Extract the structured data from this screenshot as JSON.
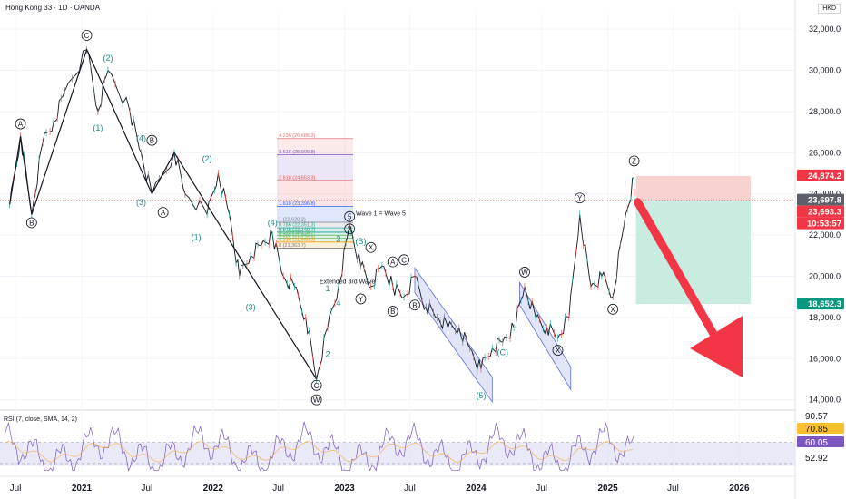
{
  "header": {
    "title": "Hong Kong 33 · 1D · OANDA",
    "currency": "HKD"
  },
  "rsi_panel": {
    "title": "RSI (7, close, SMA, 14, 2)"
  },
  "colors": {
    "up": "#26a69a",
    "down": "#ef5350",
    "price": "#131722",
    "wave_teal": "#1f8a8a",
    "wave_dark": "#131722",
    "channel_fill": "#aab4e8",
    "stop_zone": "#f7c9c9",
    "target_zone": "#bfe9dc",
    "arrow": "#f23645",
    "rsi_line": "#7e57c2",
    "rsi_band": "#e0e0f5"
  },
  "chart_data": [
    {
      "type": "line",
      "title": "Hong Kong 33 · 1D · OANDA",
      "series": [
        {
          "values": [
            {
              "x": "2020-06",
              "y": 23500
            },
            {
              "x": "2020-07",
              "y": 26800
            },
            {
              "x": "2020-08",
              "y": 23000
            },
            {
              "x": "2020-09",
              "y": 26500
            },
            {
              "x": "2020-10",
              "y": 27500
            },
            {
              "x": "2020-11",
              "y": 29000
            },
            {
              "x": "2021-01",
              "y": 31000
            },
            {
              "x": "2021-02",
              "y": 28000
            },
            {
              "x": "2021-03",
              "y": 30000
            },
            {
              "x": "2021-05",
              "y": 28000
            },
            {
              "x": "2021-06",
              "y": 26000
            },
            {
              "x": "2021-07",
              "y": 24000
            },
            {
              "x": "2021-09",
              "y": 26000
            },
            {
              "x": "2021-10",
              "y": 24000
            },
            {
              "x": "2021-12",
              "y": 23000
            },
            {
              "x": "2022-01",
              "y": 25000
            },
            {
              "x": "2022-02",
              "y": 23000
            },
            {
              "x": "2022-03",
              "y": 20000
            },
            {
              "x": "2022-04",
              "y": 21000
            },
            {
              "x": "2022-05",
              "y": 21500
            },
            {
              "x": "2022-06",
              "y": 22000
            },
            {
              "x": "2022-07",
              "y": 20000
            },
            {
              "x": "2022-08",
              "y": 19500
            },
            {
              "x": "2022-09",
              "y": 18000
            },
            {
              "x": "2022-10",
              "y": 15000
            },
            {
              "x": "2022-11",
              "y": 17500
            },
            {
              "x": "2022-12",
              "y": 19500
            },
            {
              "x": "2023-01",
              "y": 22500
            },
            {
              "x": "2023-02",
              "y": 20500
            },
            {
              "x": "2023-03",
              "y": 19500
            },
            {
              "x": "2023-04",
              "y": 20500
            },
            {
              "x": "2023-05",
              "y": 19500
            },
            {
              "x": "2023-06",
              "y": 19000
            },
            {
              "x": "2023-07",
              "y": 20000
            },
            {
              "x": "2023-08",
              "y": 18500
            },
            {
              "x": "2023-09",
              "y": 18000
            },
            {
              "x": "2023-10",
              "y": 17500
            },
            {
              "x": "2023-11",
              "y": 17500
            },
            {
              "x": "2023-12",
              "y": 16500
            },
            {
              "x": "2024-01",
              "y": 15500
            },
            {
              "x": "2024-02",
              "y": 16500
            },
            {
              "x": "2024-03",
              "y": 16800
            },
            {
              "x": "2024-04",
              "y": 17500
            },
            {
              "x": "2024-05",
              "y": 19500
            },
            {
              "x": "2024-06",
              "y": 18000
            },
            {
              "x": "2024-07",
              "y": 17500
            },
            {
              "x": "2024-08",
              "y": 17000
            },
            {
              "x": "2024-09",
              "y": 18000
            },
            {
              "x": "2024-10",
              "y": 23000
            },
            {
              "x": "2024-11",
              "y": 19500
            },
            {
              "x": "2024-12",
              "y": 20000
            },
            {
              "x": "2025-01",
              "y": 19000
            },
            {
              "x": "2025-02",
              "y": 22500
            },
            {
              "x": "2025-03",
              "y": 24800
            },
            {
              "x": "2025-03-15",
              "y": 23700
            }
          ]
        }
      ],
      "x_ticks": [
        "Jul",
        "2021",
        "Jul",
        "2022",
        "Jul",
        "2023",
        "Jul",
        "2024",
        "Jul",
        "2025",
        "Jul",
        "2026"
      ],
      "y_ticks": [
        "32,000.0",
        "30,000.0",
        "28,000.0",
        "26,000.0",
        "24,000.0",
        "22,000.0",
        "20,000.0",
        "18,000.0",
        "16,000.0",
        "14,000.0"
      ],
      "ylim": [
        13500,
        32800
      ],
      "price_labels": [
        {
          "value": 24874.2,
          "text": "24,874.2",
          "color": "#f23645"
        },
        {
          "value": 23697.8,
          "text": "23,697.8",
          "color": "#5d606b"
        },
        {
          "value": 23693.3,
          "text": "23,693.3",
          "color": "#f23645"
        },
        {
          "value": null,
          "text": "10:53:57",
          "color": "#f23645"
        },
        {
          "value": 18652.3,
          "text": "18,652.3",
          "color": "#089981"
        }
      ],
      "position_tool": {
        "entry": 23697.8,
        "stop": 24874.2,
        "target": 18652.3
      },
      "fib_levels": [
        {
          "text": "4.236 (26,686.3)",
          "value": 26686.3,
          "color": "#e57373"
        },
        {
          "text": "3.618 (25,909.8)",
          "value": 25909.8,
          "color": "#7e57c2"
        },
        {
          "text": "2.618 (24,653.3)",
          "value": 24653.3,
          "color": "#ef5350"
        },
        {
          "text": "1.618 (23,396.8)",
          "value": 23396.8,
          "color": "#2962ff"
        },
        {
          "text": "1 (22,620.2)",
          "value": 22620.2,
          "color": "#787b86"
        },
        {
          "text": "0.786 (22,351.3)",
          "value": 22351.3,
          "color": "#26a69a"
        },
        {
          "text": "0.618 (22,140.2)",
          "value": 22140.2,
          "color": "#089981"
        },
        {
          "text": "0.5 (21,991.9)",
          "value": 21991.9,
          "color": "#4caf50"
        },
        {
          "text": "0.382 (21,843.5)",
          "value": 21843.5,
          "color": "#66bb6a"
        },
        {
          "text": "0.236 (21,660.3)",
          "value": 21660.3,
          "color": "#ff9800"
        },
        {
          "text": "0 (21,363.7)",
          "value": 21363.7,
          "color": "#787b86"
        }
      ],
      "annotations": [
        {
          "text": "Wave 1 = Wave 5"
        },
        {
          "text": "Extended 3rd Wave"
        }
      ],
      "wave_labels": [
        {
          "text": "A",
          "x": "2020-07",
          "y": 27400,
          "style": "circle"
        },
        {
          "text": "B",
          "x": "2020-08",
          "y": 22600,
          "style": "circle"
        },
        {
          "text": "C",
          "x": "2021-01",
          "y": 31700,
          "style": "circle"
        },
        {
          "text": "(2)",
          "x": "2021-03",
          "y": 30600,
          "style": "teal"
        },
        {
          "text": "(1)",
          "x": "2021-02",
          "y": 27200,
          "style": "teal"
        },
        {
          "text": "(4)",
          "x": "2021-06",
          "y": 26700,
          "style": "teal"
        },
        {
          "text": "B",
          "x": "2021-07",
          "y": 26600,
          "style": "circle"
        },
        {
          "text": "(3)",
          "x": "2021-06",
          "y": 23600,
          "style": "teal"
        },
        {
          "text": "A",
          "x": "2021-08",
          "y": 23100,
          "style": "circle"
        },
        {
          "text": "(2)",
          "x": "2021-12",
          "y": 25700,
          "style": "teal"
        },
        {
          "text": "(1)",
          "x": "2021-11",
          "y": 21900,
          "style": "teal"
        },
        {
          "text": "(4)",
          "x": "2022-06",
          "y": 22600,
          "style": "teal"
        },
        {
          "text": "(3)",
          "x": "2022-04",
          "y": 18500,
          "style": "teal"
        },
        {
          "text": "C",
          "x": "2022-10",
          "y": 14700,
          "style": "circle"
        },
        {
          "text": "W",
          "x": "2022-10",
          "y": 14000,
          "style": "circle"
        },
        {
          "text": "1",
          "x": "2022-11",
          "y": 19400,
          "style": "teal"
        },
        {
          "text": "2",
          "x": "2022-11",
          "y": 16200,
          "style": "teal"
        },
        {
          "text": "3",
          "x": "2022-12",
          "y": 21800,
          "style": "teal"
        },
        {
          "text": "4",
          "x": "2022-12",
          "y": 18700,
          "style": "teal"
        },
        {
          "text": "5",
          "x": "2023-01",
          "y": 22900,
          "style": "circle"
        },
        {
          "text": "X",
          "x": "2023-01",
          "y": 22300,
          "style": "circle"
        },
        {
          "text": "(B)",
          "x": "2023-02",
          "y": 21700,
          "style": "teal"
        },
        {
          "text": "X",
          "x": "2023-03",
          "y": 21400,
          "style": "circle"
        },
        {
          "text": "A",
          "x": "2023-05",
          "y": 20700,
          "style": "circle"
        },
        {
          "text": "C",
          "x": "2023-06",
          "y": 20800,
          "style": "circle"
        },
        {
          "text": "Y",
          "x": "2023-02",
          "y": 18900,
          "style": "circle"
        },
        {
          "text": "B",
          "x": "2023-05",
          "y": 18300,
          "style": "circle"
        },
        {
          "text": "B",
          "x": "2023-07",
          "y": 18600,
          "style": "circle"
        },
        {
          "text": "(5)",
          "x": "2024-01",
          "y": 14200,
          "style": "teal"
        },
        {
          "text": "(C)",
          "x": "2024-03",
          "y": 16300,
          "style": "teal"
        },
        {
          "text": "W",
          "x": "2024-05",
          "y": 20200,
          "style": "circle"
        },
        {
          "text": "X",
          "x": "2024-08",
          "y": 16400,
          "style": "circle"
        },
        {
          "text": "Y",
          "x": "2024-10",
          "y": 23800,
          "style": "circle"
        },
        {
          "text": "X",
          "x": "2025-01",
          "y": 18400,
          "style": "circle"
        },
        {
          "text": "Z",
          "x": "2025-03",
          "y": 25600,
          "style": "circle"
        }
      ]
    },
    {
      "type": "line",
      "title": "RSI (7, close, SMA, 14, 2)",
      "ylim": [
        45,
        95
      ],
      "band": [
        30,
        70
      ],
      "values_note_levels": [
        {
          "value": 90.57,
          "text": "90.57"
        },
        {
          "value": 70.85,
          "text": "70.85"
        },
        {
          "value": 60.05,
          "text": "60.05"
        },
        {
          "value": 52.92,
          "text": "52.92"
        }
      ]
    }
  ]
}
